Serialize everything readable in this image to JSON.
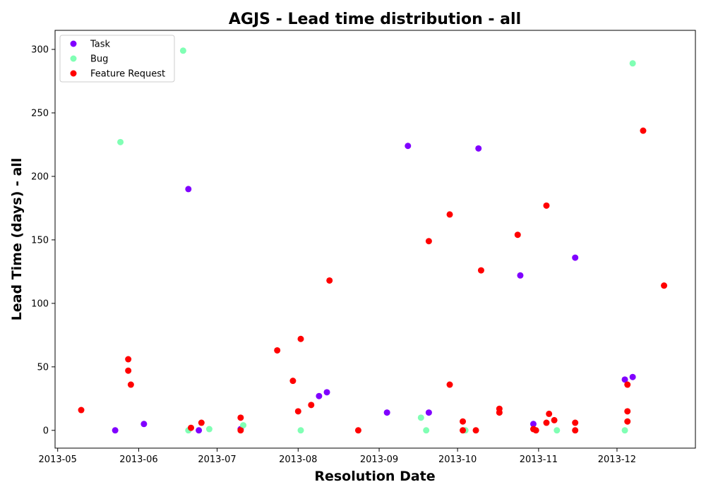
{
  "chart_data": {
    "type": "scatter",
    "title": "AGJS - Lead time distribution - all",
    "xlabel": "Resolution Date",
    "ylabel": "Lead Time (days) - all",
    "x_axis_type": "date",
    "xlim": [
      "2013-04-30",
      "2013-12-31"
    ],
    "ylim": [
      -14,
      315
    ],
    "x_ticks": [
      {
        "value": "2013-05-01",
        "label": "2013-05"
      },
      {
        "value": "2013-06-01",
        "label": "2013-06"
      },
      {
        "value": "2013-07-01",
        "label": "2013-07"
      },
      {
        "value": "2013-08-01",
        "label": "2013-08"
      },
      {
        "value": "2013-09-01",
        "label": "2013-09"
      },
      {
        "value": "2013-10-01",
        "label": "2013-10"
      },
      {
        "value": "2013-11-01",
        "label": "2013-11"
      },
      {
        "value": "2013-12-01",
        "label": "2013-12"
      }
    ],
    "y_ticks": [
      0,
      50,
      100,
      150,
      200,
      250,
      300
    ],
    "grid": false,
    "legend_position": "top-left",
    "series": [
      {
        "name": "Task",
        "color": "#8000ff",
        "points": [
          [
            "2013-05-23",
            0
          ],
          [
            "2013-06-03",
            5
          ],
          [
            "2013-06-20",
            190
          ],
          [
            "2013-06-24",
            0
          ],
          [
            "2013-07-10",
            1
          ],
          [
            "2013-08-09",
            27
          ],
          [
            "2013-08-12",
            30
          ],
          [
            "2013-09-04",
            14
          ],
          [
            "2013-09-12",
            224
          ],
          [
            "2013-09-20",
            14
          ],
          [
            "2013-10-09",
            222
          ],
          [
            "2013-10-25",
            122
          ],
          [
            "2013-10-30",
            5
          ],
          [
            "2013-11-15",
            136
          ],
          [
            "2013-12-04",
            40
          ],
          [
            "2013-12-07",
            42
          ]
        ]
      },
      {
        "name": "Bug",
        "color": "#80ffb4",
        "points": [
          [
            "2013-05-25",
            227
          ],
          [
            "2013-06-18",
            299
          ],
          [
            "2013-06-20",
            0
          ],
          [
            "2013-06-28",
            1
          ],
          [
            "2013-07-11",
            4
          ],
          [
            "2013-08-02",
            0
          ],
          [
            "2013-09-17",
            10
          ],
          [
            "2013-09-19",
            0
          ],
          [
            "2013-10-04",
            0
          ],
          [
            "2013-11-08",
            0
          ],
          [
            "2013-12-04",
            0
          ],
          [
            "2013-12-07",
            289
          ]
        ]
      },
      {
        "name": "Feature Request",
        "color": "#ff0000",
        "points": [
          [
            "2013-05-10",
            16
          ],
          [
            "2013-05-28",
            56
          ],
          [
            "2013-05-28",
            47
          ],
          [
            "2013-05-29",
            36
          ],
          [
            "2013-06-21",
            2
          ],
          [
            "2013-06-25",
            6
          ],
          [
            "2013-07-10",
            10
          ],
          [
            "2013-07-10",
            0
          ],
          [
            "2013-07-24",
            63
          ],
          [
            "2013-07-30",
            39
          ],
          [
            "2013-08-01",
            15
          ],
          [
            "2013-08-02",
            72
          ],
          [
            "2013-08-06",
            20
          ],
          [
            "2013-08-13",
            118
          ],
          [
            "2013-08-24",
            0
          ],
          [
            "2013-09-20",
            149
          ],
          [
            "2013-09-28",
            170
          ],
          [
            "2013-09-28",
            36
          ],
          [
            "2013-10-03",
            7
          ],
          [
            "2013-10-03",
            0
          ],
          [
            "2013-10-08",
            0
          ],
          [
            "2013-10-10",
            126
          ],
          [
            "2013-10-17",
            17
          ],
          [
            "2013-10-17",
            14
          ],
          [
            "2013-10-24",
            154
          ],
          [
            "2013-10-30",
            1
          ],
          [
            "2013-10-31",
            0
          ],
          [
            "2013-11-04",
            177
          ],
          [
            "2013-11-04",
            6
          ],
          [
            "2013-11-05",
            13
          ],
          [
            "2013-11-07",
            8
          ],
          [
            "2013-11-15",
            6
          ],
          [
            "2013-11-15",
            0
          ],
          [
            "2013-12-05",
            36
          ],
          [
            "2013-12-05",
            15
          ],
          [
            "2013-12-05",
            7
          ],
          [
            "2013-12-11",
            236
          ],
          [
            "2013-12-19",
            114
          ]
        ]
      }
    ]
  }
}
